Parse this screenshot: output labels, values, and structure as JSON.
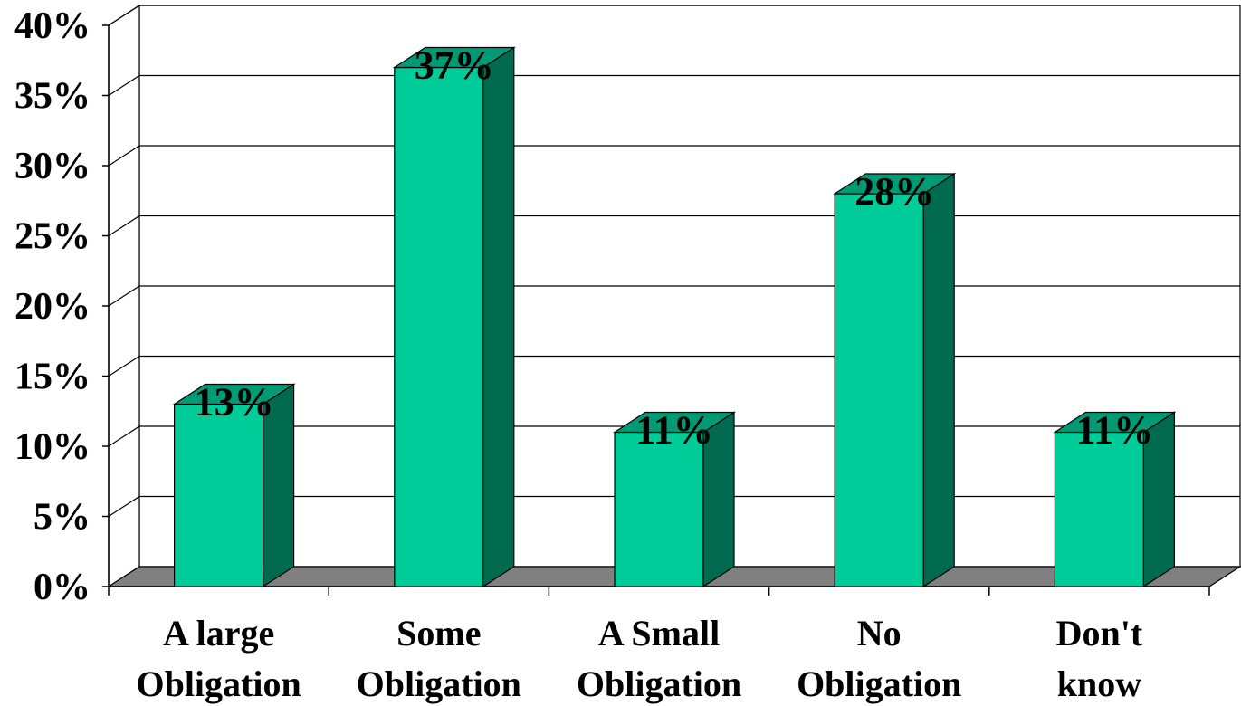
{
  "chart_data": {
    "type": "bar",
    "categories": [
      [
        "A large",
        "Obligation"
      ],
      [
        "Some",
        "Obligation"
      ],
      [
        "A Small",
        "Obligation"
      ],
      [
        "No",
        "Obligation"
      ],
      [
        "Don't",
        "know"
      ]
    ],
    "values": [
      13,
      37,
      11,
      28,
      11
    ],
    "data_labels": [
      "13%",
      "37%",
      "11%",
      "28%",
      "11%"
    ],
    "y_ticks": [
      "0%",
      "5%",
      "10%",
      "15%",
      "20%",
      "25%",
      "30%",
      "35%",
      "40%"
    ],
    "ylim": [
      0,
      40
    ],
    "grid": true,
    "legend": "none",
    "three_d": true,
    "colors": {
      "bar_front": "#00cc99",
      "bar_side": "#006a4e",
      "bar_top": "#009b74",
      "floor": "#808080",
      "gridline": "#000000"
    }
  }
}
